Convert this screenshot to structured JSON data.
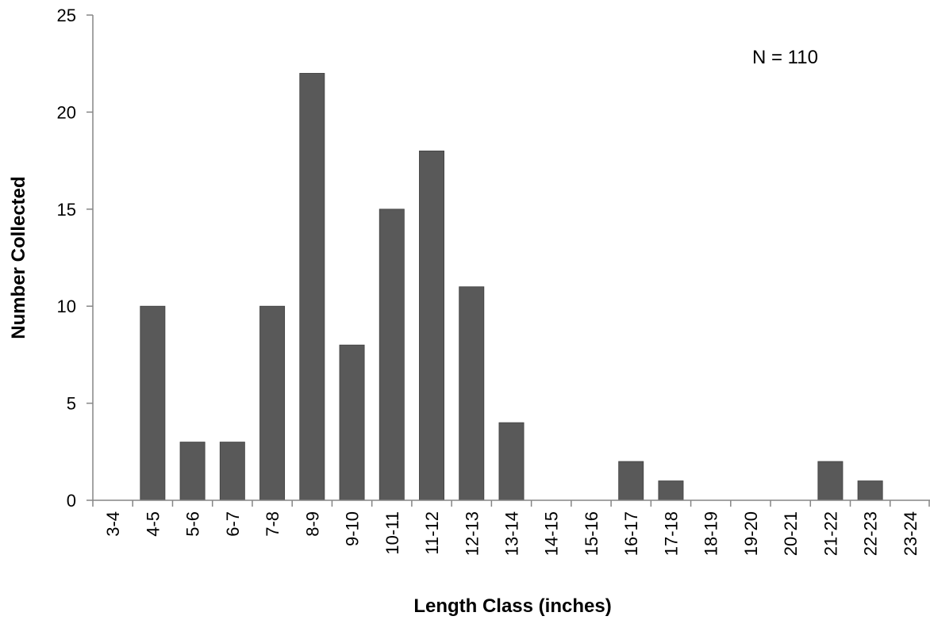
{
  "chart_data": {
    "type": "bar",
    "categories": [
      "3-4",
      "4-5",
      "5-6",
      "6-7",
      "7-8",
      "8-9",
      "9-10",
      "10-11",
      "11-12",
      "12-13",
      "13-14",
      "14-15",
      "15-16",
      "16-17",
      "17-18",
      "18-19",
      "19-20",
      "20-21",
      "21-22",
      "22-23",
      "23-24"
    ],
    "values": [
      0,
      10,
      3,
      3,
      10,
      22,
      8,
      15,
      18,
      11,
      4,
      0,
      0,
      2,
      1,
      0,
      0,
      0,
      2,
      1,
      0
    ],
    "xlabel": "Length Class (inches)",
    "ylabel": "Number Collected",
    "ylim": [
      0,
      25
    ],
    "yticks": [
      0,
      5,
      10,
      15,
      20,
      25
    ],
    "annotation": "N = 110",
    "bar_color": "#595959",
    "grid": false,
    "legend": "none"
  }
}
